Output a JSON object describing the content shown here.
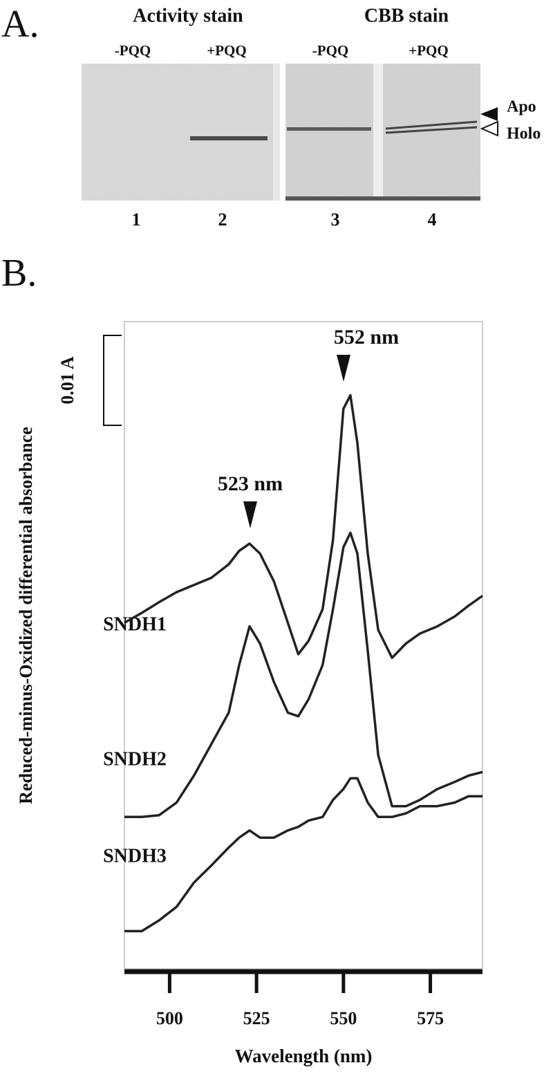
{
  "panel_a": {
    "label": "A.",
    "stains": [
      "Activity stain",
      "CBB stain"
    ],
    "conditions": [
      "-PQQ",
      "+PQQ",
      "-PQQ",
      "+PQQ"
    ],
    "lanes": [
      "1",
      "2",
      "3",
      "4"
    ],
    "markers": [
      "Apo",
      "Holo"
    ]
  },
  "chart_data": {
    "type": "line",
    "label": "B.",
    "xlabel": "Wavelength (nm)",
    "ylabel": "Reduced-minus-Oxidized differential absorbance",
    "annotations": [
      "523 nm",
      "552 nm"
    ],
    "scale_bar": {
      "value": 0.01,
      "label": "0.01 A"
    },
    "x": [
      487,
      492,
      497,
      502,
      507,
      512,
      517,
      520,
      523,
      526,
      530,
      534,
      537,
      540,
      544,
      547,
      550,
      552,
      554,
      557,
      560,
      564,
      568,
      572,
      577,
      582,
      586,
      590
    ],
    "series": [
      {
        "name": "SNDH1",
        "color": "#222222",
        "values": [
          0.0385,
          0.0396,
          0.0408,
          0.0419,
          0.0427,
          0.0435,
          0.045,
          0.0465,
          0.0473,
          0.0462,
          0.0431,
          0.0385,
          0.035,
          0.0365,
          0.04,
          0.0477,
          0.0623,
          0.0638,
          0.0585,
          0.0462,
          0.0377,
          0.0346,
          0.0362,
          0.0373,
          0.0381,
          0.0392,
          0.0404,
          0.0415
        ]
      },
      {
        "name": "SNDH2",
        "color": "#222222",
        "values": [
          0.0169,
          0.0169,
          0.0171,
          0.0185,
          0.0215,
          0.025,
          0.0285,
          0.0338,
          0.0381,
          0.0362,
          0.0319,
          0.0285,
          0.0281,
          0.03,
          0.0338,
          0.04,
          0.0469,
          0.0485,
          0.0462,
          0.0354,
          0.0238,
          0.0181,
          0.0181,
          0.0188,
          0.02,
          0.0208,
          0.0215,
          0.0219
        ]
      },
      {
        "name": "SNDH3",
        "color": "#222222",
        "values": [
          0.0042,
          0.0042,
          0.0054,
          0.0069,
          0.0096,
          0.0115,
          0.0135,
          0.0146,
          0.0154,
          0.0146,
          0.0146,
          0.0154,
          0.0158,
          0.0165,
          0.0169,
          0.0188,
          0.02,
          0.0212,
          0.0212,
          0.0185,
          0.0169,
          0.0169,
          0.0173,
          0.0181,
          0.0181,
          0.0185,
          0.0192,
          0.0192
        ]
      }
    ],
    "xlim": [
      487,
      590
    ],
    "xticks": [
      500,
      525,
      550,
      575
    ],
    "ylim": [
      0,
      0.072
    ]
  }
}
